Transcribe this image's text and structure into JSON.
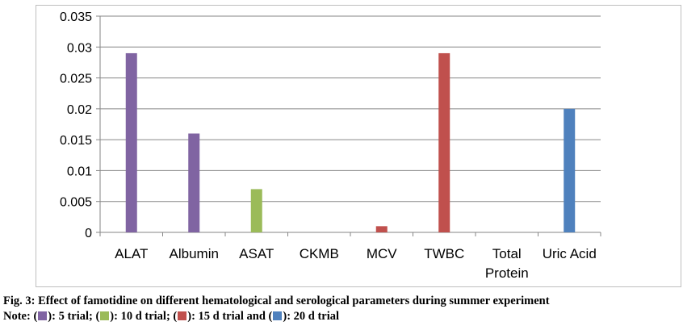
{
  "chart_data": {
    "type": "bar",
    "categories": [
      "ALAT",
      "Albumin",
      "ASAT",
      "CKMB",
      "MCV",
      "TWBC",
      "Total Protein",
      "Uric Acid"
    ],
    "category_lines": [
      [
        "ALAT"
      ],
      [
        "Albumin"
      ],
      [
        "ASAT"
      ],
      [
        "CKMB"
      ],
      [
        "MCV"
      ],
      [
        "TWBC"
      ],
      [
        "Total",
        "Protein"
      ],
      [
        "Uric Acid"
      ]
    ],
    "values": [
      0.029,
      0.016,
      0.007,
      0,
      0.001,
      0.029,
      0,
      0.02
    ],
    "bar_colors": [
      "#8064A2",
      "#8064A2",
      "#9BBB59",
      "#8064A2",
      "#C0504D",
      "#C0504D",
      "#8064A2",
      "#4F81BD"
    ],
    "ylim": [
      0,
      0.035
    ],
    "yticks": [
      0,
      0.005,
      0.01,
      0.015,
      0.02,
      0.025,
      0.03,
      0.035
    ],
    "ytick_labels": [
      "0",
      "0.005",
      "0.01",
      "0.015",
      "0.02",
      "0.025",
      "0.03",
      "0.035"
    ],
    "grid": true,
    "title": "",
    "xlabel": "",
    "ylabel": ""
  },
  "caption": {
    "figure_text": "Fig. 3: Effect of famotidine on different hematological and serological parameters during summer experiment",
    "note_prefix": "Note: (",
    "note_items": [
      {
        "color": "#8064A2",
        "text": "): 5 trial; ("
      },
      {
        "color": "#9BBB59",
        "text": "): 10 d trial; ("
      },
      {
        "color": "#C0504D",
        "text": "): 15 d trial and ("
      },
      {
        "color": "#4F81BD",
        "text": "): 20 d trial"
      }
    ]
  }
}
